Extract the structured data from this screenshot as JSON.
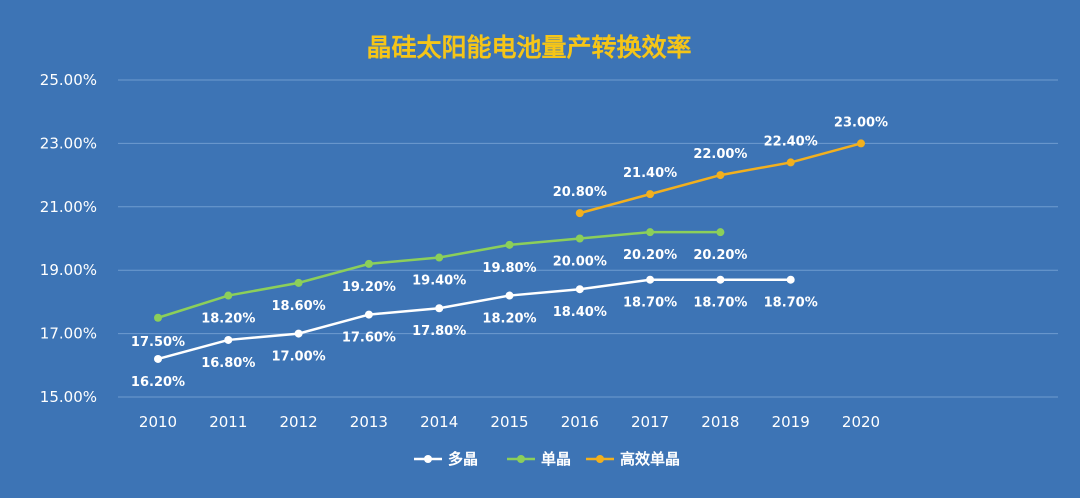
{
  "chart_data": {
    "type": "line",
    "title": "晶硅太阳能电池量产转换效率",
    "title_color": "#f5c518",
    "background": "#3d74b5",
    "grid": true,
    "legend_position": "bottom",
    "x": [
      "2010",
      "2011",
      "2012",
      "2013",
      "2014",
      "2015",
      "2016",
      "2017",
      "2018",
      "2019",
      "2020"
    ],
    "ylim": [
      15,
      25
    ],
    "yticks": [
      15,
      17,
      19,
      21,
      23,
      25
    ],
    "ytick_labels": [
      "15.00%",
      "17.00%",
      "19.00%",
      "21.00%",
      "23.00%",
      "25.00%"
    ],
    "series": [
      {
        "name": "多晶",
        "color": "#ffffff",
        "values": [
          16.2,
          16.8,
          17.0,
          17.6,
          17.8,
          18.2,
          18.4,
          18.7,
          18.7,
          18.7,
          null
        ],
        "labels": [
          "16.20%",
          "16.80%",
          "17.00%",
          "17.60%",
          "17.80%",
          "18.20%",
          "18.40%",
          "18.70%",
          "18.70%",
          "18.70%",
          null
        ]
      },
      {
        "name": "单晶",
        "color": "#8ccf5a",
        "values": [
          17.5,
          18.2,
          18.6,
          19.2,
          19.4,
          19.8,
          20.0,
          20.2,
          20.2,
          null,
          null
        ],
        "labels": [
          "17.50%",
          "18.20%",
          "18.60%",
          "19.20%",
          "19.40%",
          "19.80%",
          "20.00%",
          "20.20%",
          "20.20%",
          null,
          null
        ]
      },
      {
        "name": "高效单晶",
        "color": "#f2b01e",
        "values": [
          null,
          null,
          null,
          null,
          null,
          null,
          20.8,
          21.4,
          22.0,
          22.4,
          23.0
        ],
        "labels": [
          null,
          null,
          null,
          null,
          null,
          null,
          "20.80%",
          "21.40%",
          "22.00%",
          "22.40%",
          "23.00%"
        ]
      }
    ]
  }
}
